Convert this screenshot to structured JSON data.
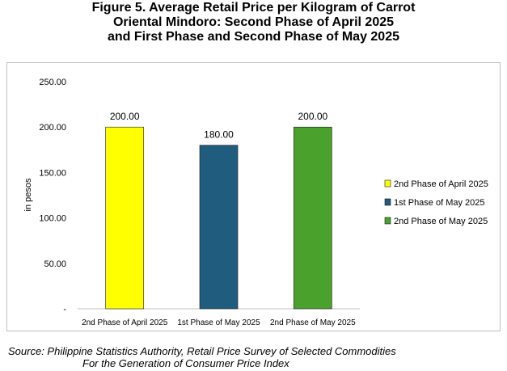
{
  "title_lines": [
    "Figure 5. Average Retail Price per Kilogram of Carrot",
    "Oriental Mindoro: Second Phase of April 2025",
    "and First Phase and Second Phase of May 2025"
  ],
  "source_lines": [
    "Source: Philippine Statistics Authority, Retail Price Survey of Selected Commodities",
    "For the Generation of Consumer Price Index"
  ],
  "colors": {
    "apr2": "#ffff00",
    "may1": "#1f5c7d",
    "may2": "#4aa22d"
  },
  "chart_data": {
    "type": "bar",
    "title": "",
    "xlabel": "",
    "ylabel": "in pesos",
    "ylim": [
      0,
      250
    ],
    "yticks": [
      0,
      50,
      100,
      150,
      200,
      250
    ],
    "ytick_labels": [
      "-",
      "50.00",
      "100.00",
      "150.00",
      "200.00",
      "250.00"
    ],
    "categories": [
      "2nd Phase of April 2025",
      "1st Phase of May 2025",
      "2nd Phase of May 2025"
    ],
    "values": [
      200,
      180,
      200
    ],
    "value_labels": [
      "200.00",
      "180.00",
      "200.00"
    ],
    "bar_colors": [
      "#ffff00",
      "#1f5c7d",
      "#4aa22d"
    ],
    "legend": [
      "2nd Phase of April 2025",
      "1st Phase of May 2025",
      "2nd Phase of May 2025"
    ],
    "legend_position": "right",
    "grid": false
  }
}
